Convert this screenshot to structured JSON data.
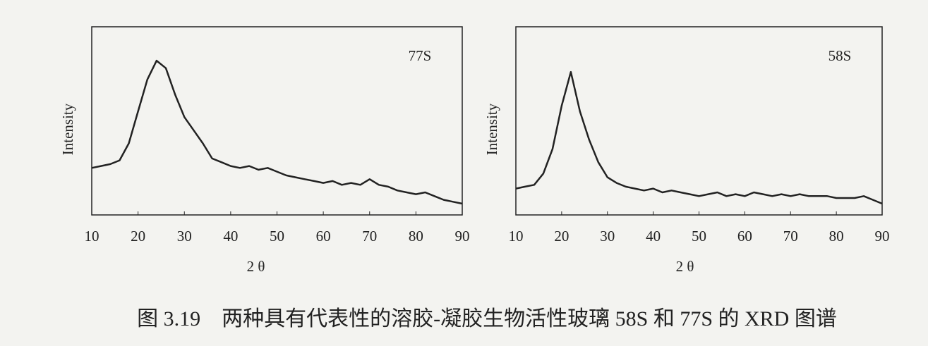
{
  "chart_data": [
    {
      "type": "line",
      "label": "77S",
      "xlabel": "2 θ",
      "ylabel": "Intensity",
      "color": "#222222",
      "xlim": [
        10,
        90
      ],
      "xticks": [
        10,
        20,
        30,
        40,
        50,
        60,
        70,
        80,
        90
      ],
      "ylim": [
        0,
        100
      ],
      "x": [
        10,
        12,
        14,
        16,
        18,
        20,
        22,
        24,
        26,
        28,
        30,
        32,
        34,
        36,
        38,
        40,
        42,
        44,
        46,
        48,
        50,
        52,
        54,
        56,
        58,
        60,
        62,
        64,
        66,
        68,
        70,
        72,
        74,
        76,
        78,
        80,
        82,
        84,
        86,
        88,
        90
      ],
      "values": [
        25,
        26,
        27,
        29,
        38,
        55,
        72,
        82,
        78,
        64,
        52,
        45,
        38,
        30,
        28,
        26,
        25,
        26,
        24,
        25,
        23,
        21,
        20,
        19,
        18,
        17,
        18,
        16,
        17,
        16,
        19,
        16,
        15,
        13,
        12,
        11,
        12,
        10,
        8,
        7,
        6
      ]
    },
    {
      "type": "line",
      "label": "58S",
      "xlabel": "2 θ",
      "ylabel": "Intensity",
      "color": "#222222",
      "xlim": [
        10,
        90
      ],
      "xticks": [
        10,
        20,
        30,
        40,
        50,
        60,
        70,
        80,
        90
      ],
      "ylim": [
        0,
        100
      ],
      "x": [
        10,
        12,
        14,
        16,
        18,
        20,
        22,
        24,
        26,
        28,
        30,
        32,
        34,
        36,
        38,
        40,
        42,
        44,
        46,
        48,
        50,
        52,
        54,
        56,
        58,
        60,
        62,
        64,
        66,
        68,
        70,
        72,
        74,
        76,
        78,
        80,
        82,
        84,
        86,
        88,
        90
      ],
      "values": [
        14,
        15,
        16,
        22,
        35,
        58,
        76,
        55,
        40,
        28,
        20,
        17,
        15,
        14,
        13,
        14,
        12,
        13,
        12,
        11,
        10,
        11,
        12,
        10,
        11,
        10,
        12,
        11,
        10,
        11,
        10,
        11,
        10,
        10,
        10,
        9,
        9,
        9,
        10,
        8,
        6
      ]
    }
  ],
  "caption": "图 3.19　两种具有代表性的溶胶-凝胶生物活性玻璃 58S 和 77S 的 XRD 图谱"
}
